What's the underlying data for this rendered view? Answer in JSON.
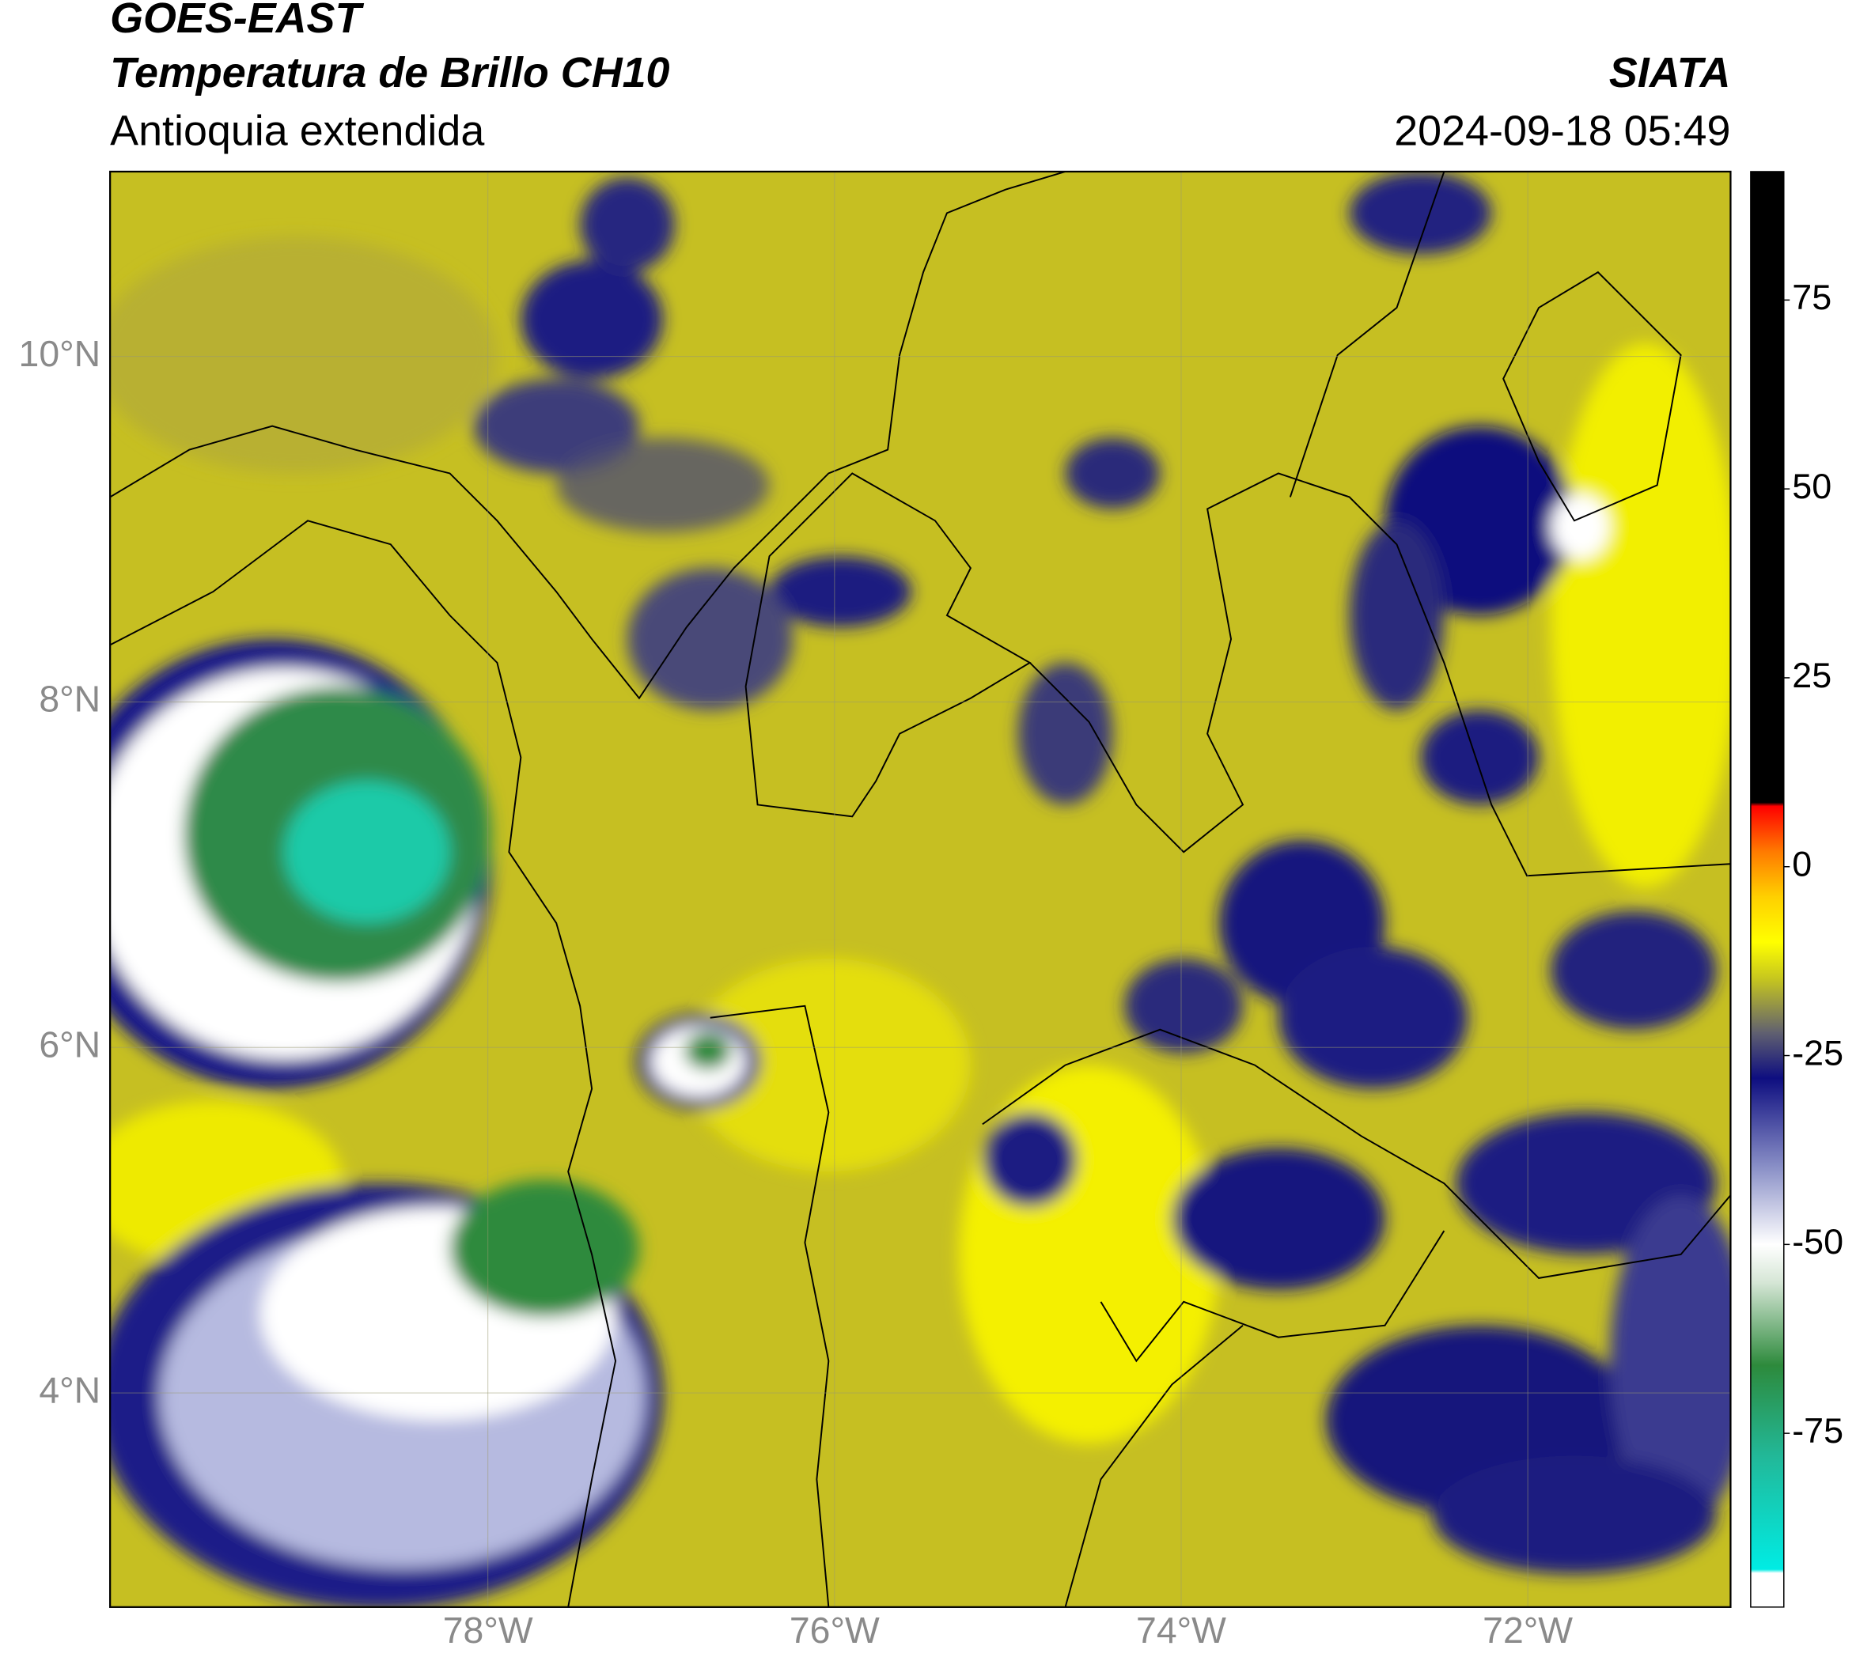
{
  "header": {
    "title": "GOES-EAST",
    "subtitle": "Temperatura de Brillo CH10",
    "region": "Antioquia extendida",
    "source": "SIATA",
    "timestamp": "2024-09-18 05:49"
  },
  "map": {
    "xlim": [
      -80.18,
      -70.83
    ],
    "ylim": [
      2.76,
      11.07
    ],
    "xticks": [
      {
        "value": -78,
        "label": "78°W"
      },
      {
        "value": -76,
        "label": "76°W"
      },
      {
        "value": -74,
        "label": "74°W"
      },
      {
        "value": -72,
        "label": "72°W"
      }
    ],
    "yticks": [
      {
        "value": 10,
        "label": "10°N"
      },
      {
        "value": 8,
        "label": "8°N"
      },
      {
        "value": 6,
        "label": "6°N"
      },
      {
        "value": 4,
        "label": "4°N"
      }
    ],
    "grid": true
  },
  "colorbar": {
    "lim": [
      -98,
      92
    ],
    "ticks": [
      75,
      50,
      25,
      0,
      -25,
      -50,
      -75
    ],
    "stops": [
      {
        "value": -98,
        "color": "#ffffff"
      },
      {
        "value": -93.5,
        "color": "#ffffff"
      },
      {
        "value": -93,
        "color": "#00ece4"
      },
      {
        "value": -78,
        "color": "#22b898"
      },
      {
        "value": -66,
        "color": "#2d8a3c"
      },
      {
        "value": -55,
        "color": "#d6e6d6"
      },
      {
        "value": -50,
        "color": "#ffffff"
      },
      {
        "value": -40,
        "color": "#8c92c8"
      },
      {
        "value": -28,
        "color": "#0e0e80"
      },
      {
        "value": -22,
        "color": "#606070"
      },
      {
        "value": -15,
        "color": "#c4c420"
      },
      {
        "value": -10,
        "color": "#ffff00"
      },
      {
        "value": -4,
        "color": "#ffd000"
      },
      {
        "value": 2,
        "color": "#ff7a00"
      },
      {
        "value": 8,
        "color": "#ff0000"
      },
      {
        "value": 8.5,
        "color": "#000000"
      },
      {
        "value": 92,
        "color": "#000000"
      }
    ]
  }
}
